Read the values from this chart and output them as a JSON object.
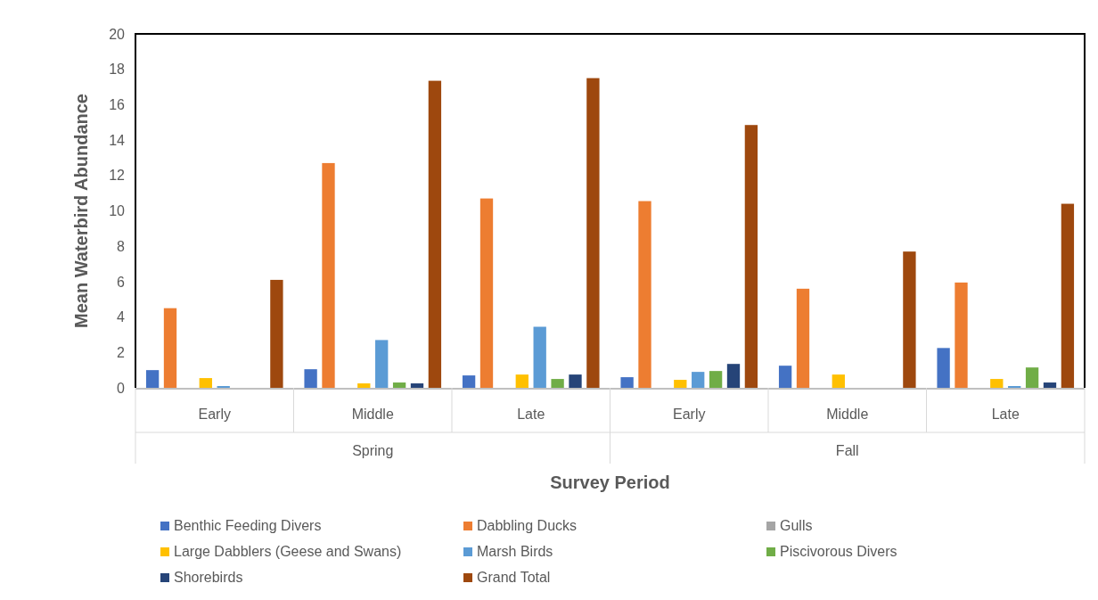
{
  "chart_data": {
    "type": "bar",
    "xlabel": "Survey Period",
    "ylabel": "Mean Waterbird Abundance",
    "categories": [
      "Early",
      "Middle",
      "Late",
      "Early",
      "Middle",
      "Late"
    ],
    "annotations": [
      "Spring",
      "Fall"
    ],
    "ylim": [
      0,
      20
    ],
    "yticks": [
      0,
      2,
      4,
      6,
      8,
      10,
      12,
      14,
      16,
      18,
      20
    ],
    "grid": false,
    "legend": "bottom",
    "series": [
      {
        "name": "Benthic Feeding Divers",
        "color": "#4472c4",
        "values": [
          1.0,
          1.05,
          0.7,
          0.6,
          1.25,
          2.25
        ]
      },
      {
        "name": "Dabbling Ducks",
        "color": "#ed7d31",
        "values": [
          4.5,
          12.7,
          10.7,
          10.55,
          5.6,
          5.95
        ]
      },
      {
        "name": "Gulls",
        "color": "#a5a5a5",
        "values": [
          0,
          0,
          0,
          0,
          0,
          0
        ]
      },
      {
        "name": "Large Dabblers (Geese and Swans)",
        "color": "#ffc000",
        "values": [
          0.55,
          0.25,
          0.75,
          0.45,
          0.75,
          0.5
        ]
      },
      {
        "name": "Marsh Birds",
        "color": "#5b9bd5",
        "values": [
          0.1,
          2.7,
          3.45,
          0.9,
          0,
          0.1
        ]
      },
      {
        "name": "Piscivorous Divers",
        "color": "#70ad47",
        "values": [
          0,
          0.3,
          0.5,
          0.95,
          0,
          1.15
        ]
      },
      {
        "name": "Shorebirds",
        "color": "#264478",
        "values": [
          0,
          0.25,
          0.75,
          1.35,
          0,
          0.3
        ]
      },
      {
        "name": "Grand Total",
        "color": "#9e480e",
        "values": [
          6.1,
          17.35,
          17.5,
          14.85,
          7.7,
          10.4
        ]
      }
    ]
  }
}
